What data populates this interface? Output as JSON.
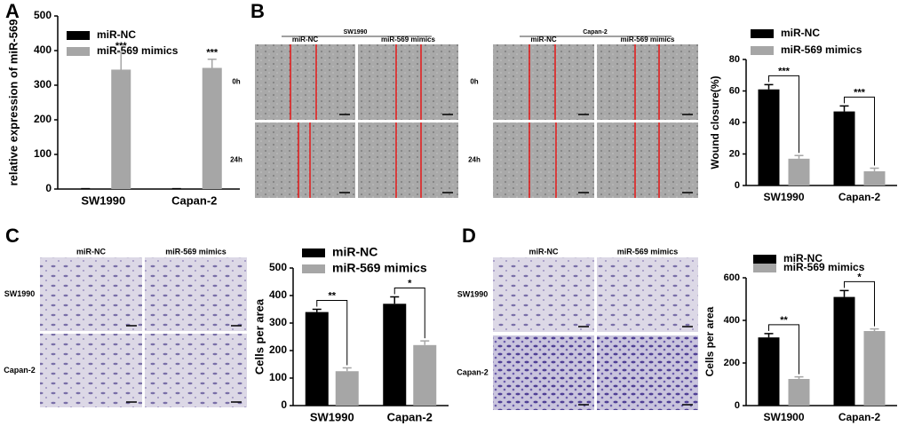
{
  "figure": {
    "letters": [
      "A",
      "B",
      "C",
      "D"
    ],
    "image_sets": [
      {
        "group": "SW1990",
        "columns": [
          "miR-NC",
          "miR-569 mimics"
        ],
        "rows": [
          "0h",
          "24h"
        ]
      },
      {
        "group": "Capan-2",
        "columns": [
          "miR-NC",
          "miR-569 mimics"
        ],
        "rows": [
          "0h",
          "24h"
        ]
      },
      {
        "columns": [
          "miR-NC",
          "miR-569 mimics"
        ],
        "rows": [
          "SW1990",
          "Capan-2"
        ]
      },
      {
        "columns": [
          "miR-NC",
          "miR-569 mimics"
        ],
        "rows": [
          "SW1990",
          "Capan-2"
        ]
      }
    ]
  },
  "chart_data": [
    {
      "type": "bar",
      "ylabel": "relative expression of miR-569",
      "categories": [
        "SW1990",
        "Capan-2"
      ],
      "series": [
        {
          "name": "miR-NC",
          "color": "#000000",
          "values": [
            1,
            1
          ],
          "errors": [
            0,
            0
          ]
        },
        {
          "name": "miR-569 mimics",
          "color": "#a6a6a6",
          "values": [
            345,
            350
          ],
          "errors": [
            50,
            25
          ]
        }
      ],
      "significance": [
        "***",
        "***"
      ],
      "ylim": [
        0,
        500
      ],
      "yticks": [
        0,
        100,
        200,
        300,
        400,
        500
      ]
    },
    {
      "type": "bar",
      "ylabel": "Wound closure(%)",
      "categories": [
        "SW1990",
        "Capan-2"
      ],
      "series": [
        {
          "name": "miR-NC",
          "color": "#000000",
          "values": [
            61,
            47
          ],
          "errors": [
            3,
            3.5
          ]
        },
        {
          "name": "miR-569 mimics",
          "color": "#a6a6a6",
          "values": [
            17,
            9
          ],
          "errors": [
            2,
            2
          ]
        }
      ],
      "significance": [
        "***",
        "***"
      ],
      "ylim": [
        0,
        80
      ],
      "yticks": [
        0,
        20,
        40,
        60,
        80
      ]
    },
    {
      "type": "bar",
      "ylabel": "Cells per area",
      "categories": [
        "SW1990",
        "Capan-2"
      ],
      "series": [
        {
          "name": "miR-NC",
          "color": "#000000",
          "values": [
            340,
            370
          ],
          "errors": [
            10,
            25
          ]
        },
        {
          "name": "miR-569 mimics",
          "color": "#a6a6a6",
          "values": [
            125,
            220
          ],
          "errors": [
            12,
            15
          ]
        }
      ],
      "significance": [
        "**",
        "*"
      ],
      "ylim": [
        0,
        500
      ],
      "yticks": [
        0,
        100,
        200,
        300,
        400,
        500
      ]
    },
    {
      "type": "bar",
      "ylabel": "Cells per area",
      "categories": [
        "SW1900",
        "Capan-2"
      ],
      "series": [
        {
          "name": "miR-NC",
          "color": "#000000",
          "values": [
            320,
            510
          ],
          "errors": [
            18,
            30
          ]
        },
        {
          "name": "miR-569 mimics",
          "color": "#a6a6a6",
          "values": [
            125,
            350
          ],
          "errors": [
            10,
            10
          ]
        }
      ],
      "significance": [
        "**",
        "*"
      ],
      "ylim": [
        0,
        600
      ],
      "yticks": [
        0,
        200,
        400,
        600
      ]
    }
  ]
}
